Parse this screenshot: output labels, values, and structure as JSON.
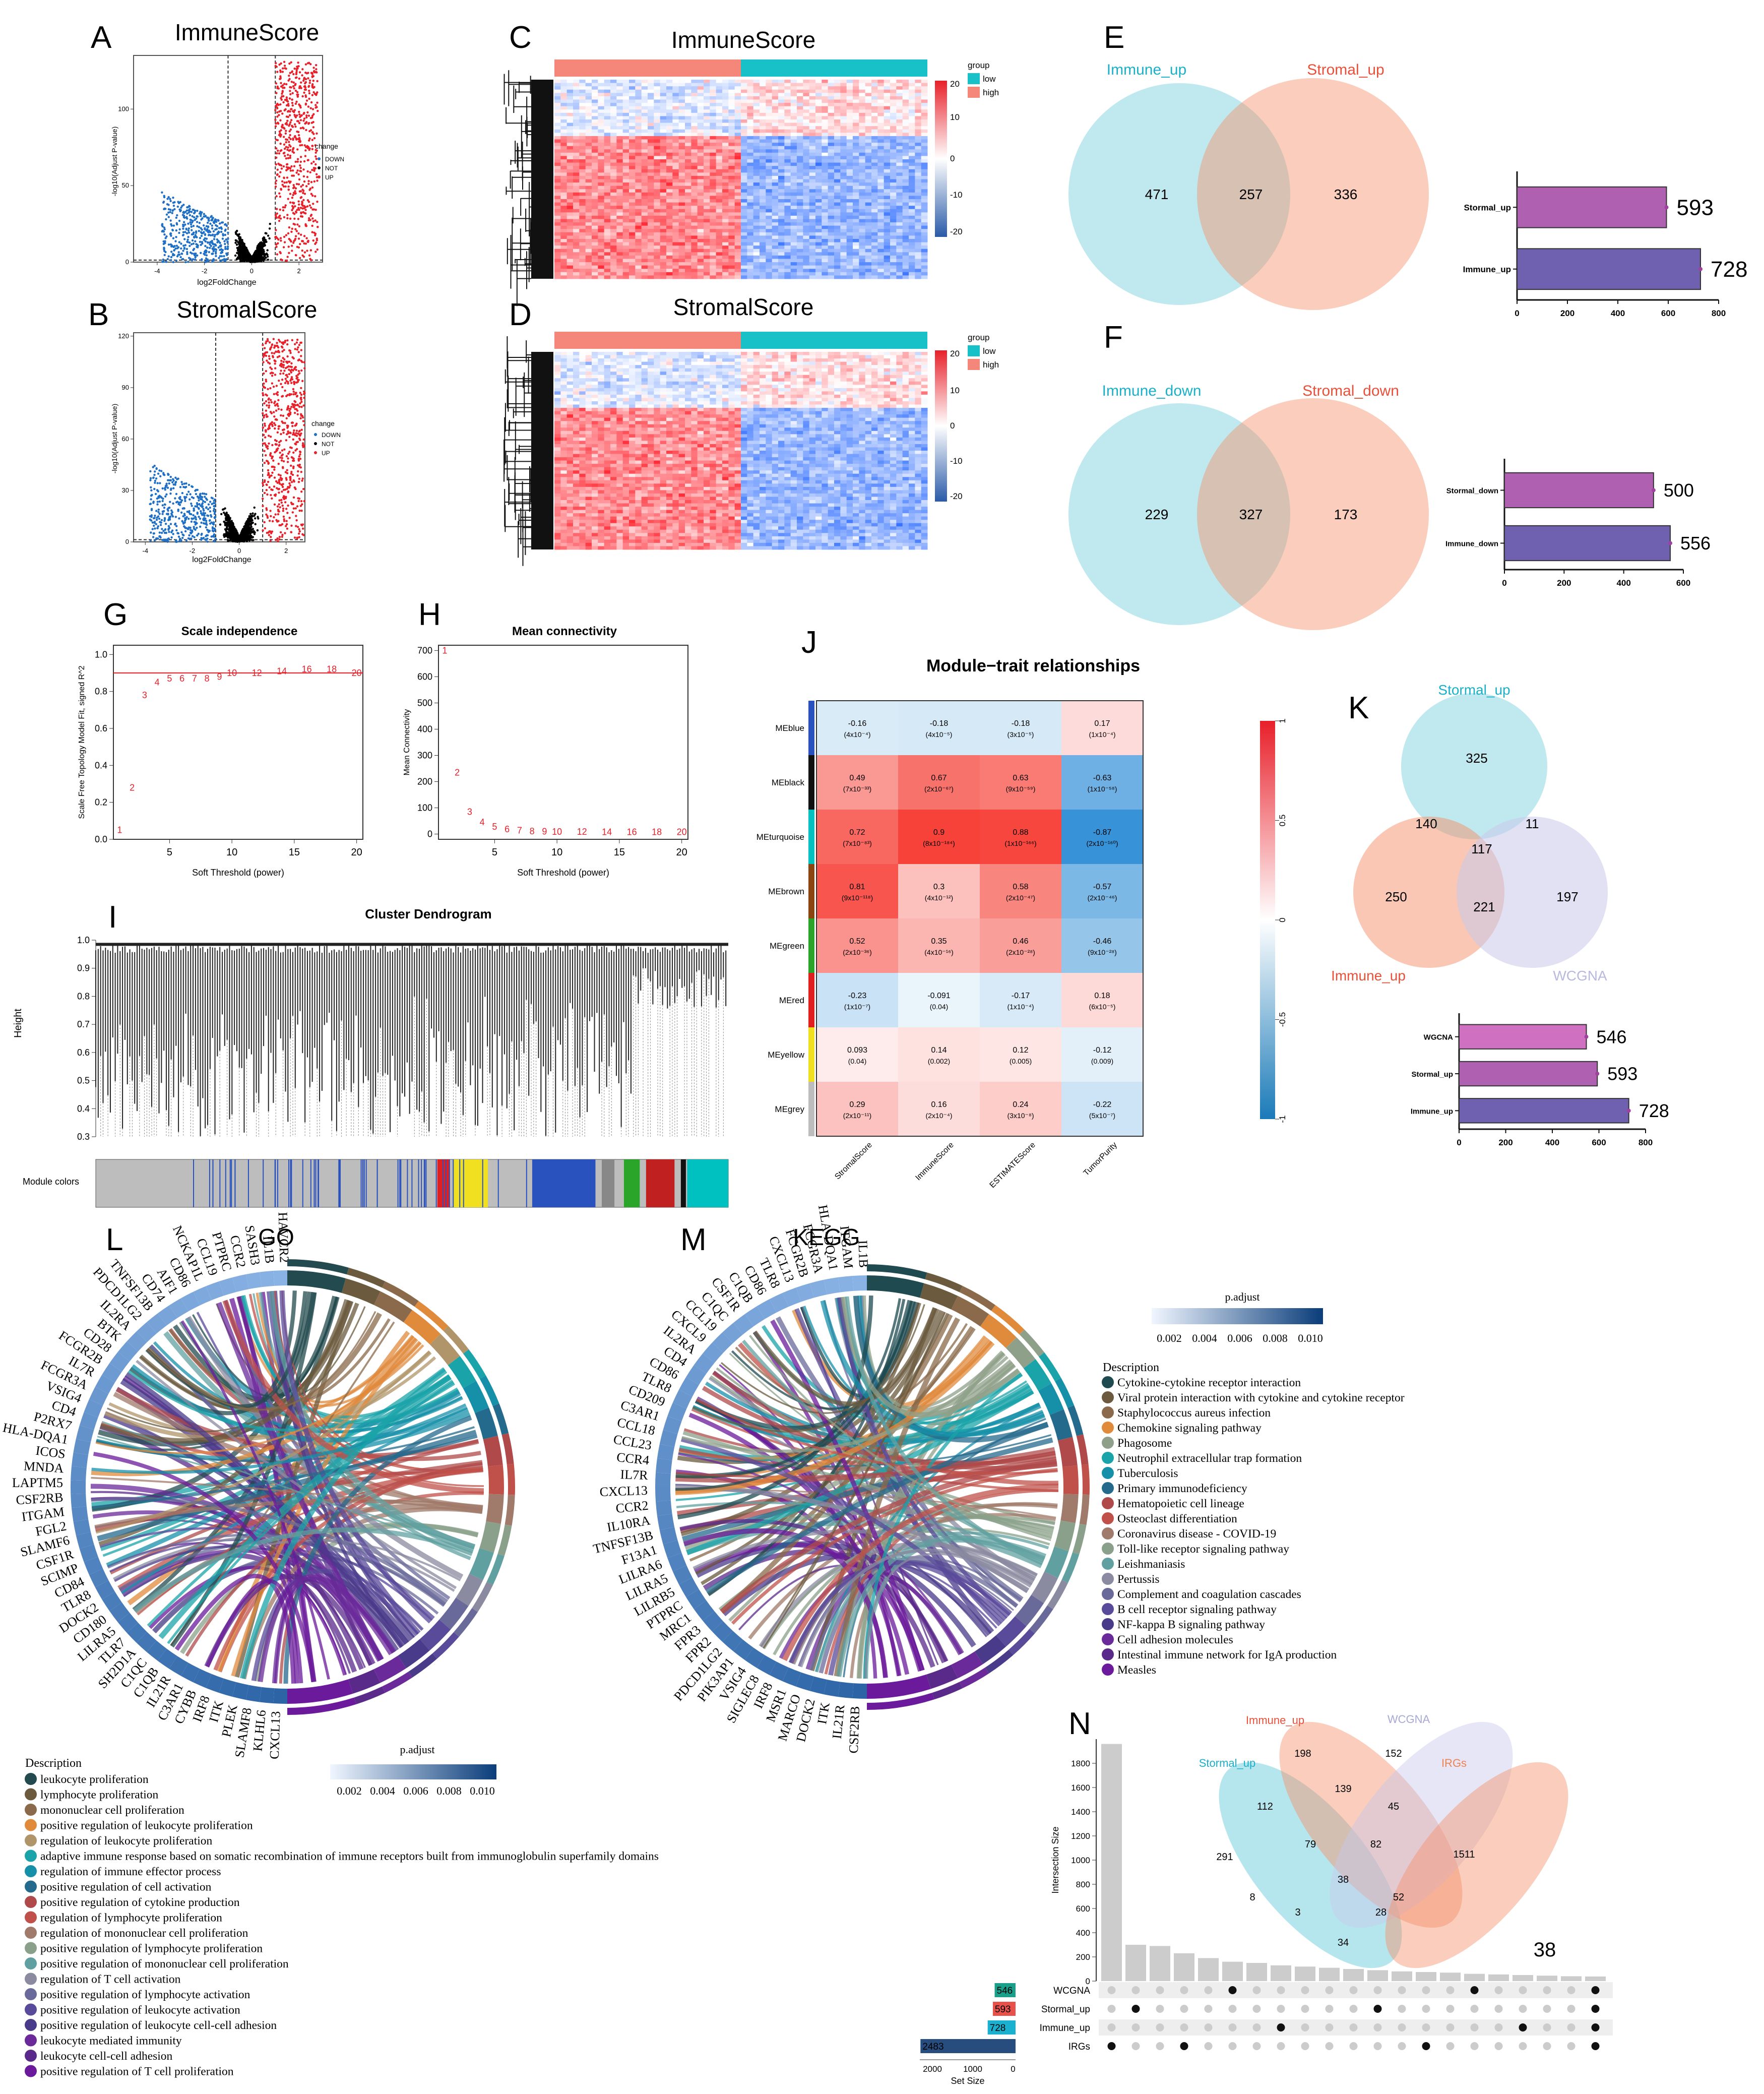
{
  "panel_labels": [
    "A",
    "B",
    "C",
    "D",
    "E",
    "F",
    "G",
    "H",
    "I",
    "J",
    "K",
    "L",
    "M",
    "N"
  ],
  "volcano": {
    "a_title": "ImmuneScore",
    "b_title": "StromalScore",
    "xlabel": "log2FoldChange",
    "ylabel": "-log10(Adjust P-value)",
    "legend_title": "change",
    "legend_items": [
      "DOWN",
      "NOT",
      "UP"
    ],
    "colors": {
      "down": "#1f6fc5",
      "not": "#000000",
      "up": "#e8202a"
    }
  },
  "heatmap": {
    "c_title": "ImmuneScore",
    "d_title": "StromalScore",
    "legend_title": "group",
    "legend_items": [
      "low",
      "high"
    ],
    "scale_ticks": [
      "20",
      "10",
      "0",
      "-10",
      "-20"
    ]
  },
  "venn_e": {
    "left_label": "Immune_up",
    "right_label": "Stromal_up",
    "left_only": "471",
    "overlap": "257",
    "right_only": "336",
    "bar_labels": [
      "Stormal_up",
      "Immune_up"
    ],
    "bar_values": [
      "593",
      "728"
    ],
    "bar_ticks": [
      "0",
      "200",
      "400",
      "600",
      "800"
    ]
  },
  "venn_f": {
    "left_label": "Immune_down",
    "right_label": "Stromal_down",
    "left_only": "229",
    "overlap": "327",
    "right_only": "173",
    "bar_labels": [
      "Stormal_down",
      "Immune_down"
    ],
    "bar_values": [
      "500",
      "556"
    ],
    "bar_ticks": [
      "0",
      "200",
      "400",
      "600"
    ]
  },
  "scale_free": {
    "title": "Scale independence",
    "xlabel": "Soft Threshold (power)",
    "ylabel": "Scale Free Topology Model Fit, signed R^2",
    "points": [
      [
        1,
        0.05
      ],
      [
        2,
        0.28
      ],
      [
        3,
        0.78
      ],
      [
        4,
        0.85
      ],
      [
        5,
        0.87
      ],
      [
        6,
        0.87
      ],
      [
        7,
        0.87
      ],
      [
        8,
        0.87
      ],
      [
        9,
        0.88
      ],
      [
        10,
        0.9
      ],
      [
        12,
        0.9
      ],
      [
        14,
        0.91
      ],
      [
        16,
        0.92
      ],
      [
        18,
        0.92
      ],
      [
        20,
        0.9
      ]
    ],
    "x_ticks": [
      "5",
      "10",
      "15",
      "20"
    ],
    "y_ticks": [
      "0.0",
      "0.2",
      "0.4",
      "0.6",
      "0.8",
      "1.0"
    ],
    "cutoff": 0.9
  },
  "mean_conn": {
    "title": "Mean connectivity",
    "xlabel": "Soft Threshold (power)",
    "ylabel": "Mean Connectivity",
    "points": [
      [
        1,
        700
      ],
      [
        2,
        235
      ],
      [
        3,
        85
      ],
      [
        4,
        45
      ],
      [
        5,
        28
      ],
      [
        6,
        18
      ],
      [
        7,
        14
      ],
      [
        8,
        11
      ],
      [
        9,
        10
      ],
      [
        10,
        9
      ],
      [
        12,
        9
      ],
      [
        14,
        8
      ],
      [
        16,
        8
      ],
      [
        18,
        8
      ],
      [
        20,
        8
      ]
    ],
    "x_ticks": [
      "5",
      "10",
      "15",
      "20"
    ],
    "y_ticks": [
      "0",
      "100",
      "200",
      "300",
      "400",
      "500",
      "600",
      "700"
    ]
  },
  "dendrogram": {
    "title": "Cluster Dendrogram",
    "ylabel": "Height",
    "y_ticks": [
      "1.0",
      "0.9",
      "0.8",
      "0.7",
      "0.6",
      "0.5",
      "0.4",
      "0.3"
    ],
    "module_label": "Module colors"
  },
  "module_trait": {
    "title": "Module−trait relationships",
    "rows": [
      "MEblue",
      "MEblack",
      "MEturquoise",
      "MEbrown",
      "MEgreen",
      "MEred",
      "MEyellow",
      "MEgrey"
    ],
    "row_colors": [
      "#2a52be",
      "#111111",
      "#00c0c0",
      "#8b4513",
      "#2aa52a",
      "#e02020",
      "#f0e020",
      "#bdbdbd"
    ],
    "cols": [
      "StromalScore",
      "ImmuneScore",
      "ESTIMATEScore",
      "TumorPurity"
    ],
    "values": [
      [
        -0.16,
        -0.18,
        -0.18,
        0.17
      ],
      [
        0.49,
        0.67,
        0.63,
        -0.63
      ],
      [
        0.72,
        0.9,
        0.88,
        -0.87
      ],
      [
        0.81,
        0.3,
        0.58,
        -0.57
      ],
      [
        0.52,
        0.35,
        0.46,
        -0.46
      ],
      [
        -0.23,
        -0.091,
        -0.17,
        0.18
      ],
      [
        0.093,
        0.14,
        0.12,
        -0.12
      ],
      [
        0.29,
        0.16,
        0.24,
        -0.22
      ]
    ],
    "value_text": [
      [
        "-0.16",
        "-0.18",
        "-0.18",
        "0.17"
      ],
      [
        "0.49",
        "0.67",
        "0.63",
        "-0.63"
      ],
      [
        "0.72",
        "0.9",
        "0.88",
        "-0.87"
      ],
      [
        "0.81",
        "0.3",
        "0.58",
        "-0.57"
      ],
      [
        "0.52",
        "0.35",
        "0.46",
        "-0.46"
      ],
      [
        "-0.23",
        "-0.091",
        "-0.17",
        "0.18"
      ],
      [
        "0.093",
        "0.14",
        "0.12",
        "-0.12"
      ],
      [
        "0.29",
        "0.16",
        "0.24",
        "-0.22"
      ]
    ],
    "pvalue_text": [
      [
        "(4x10⁻⁴)",
        "(4x10⁻⁵)",
        "(3x10⁻⁵)",
        "(1x10⁻⁴)"
      ],
      [
        "(7x10⁻³³)",
        "(2x10⁻⁶⁷)",
        "(9x10⁻⁵⁹)",
        "(1x10⁻⁵⁸)"
      ],
      [
        "(7x10⁻⁸³)",
        "(8x10⁻¹⁸⁴)",
        "(1x10⁻¹⁶⁶)",
        "(2x10⁻¹⁶⁰)"
      ],
      [
        "(9x10⁻¹¹⁸)",
        "(4x10⁻¹²)",
        "(2x10⁻⁴⁷)",
        "(2x10⁻⁴⁶)"
      ],
      [
        "(2x10⁻³⁶)",
        "(4x10⁻¹⁶)",
        "(2x10⁻²⁸)",
        "(9x10⁻²⁸)"
      ],
      [
        "(1x10⁻⁷)",
        "(0.04)",
        "(1x10⁻⁴)",
        "(6x10⁻⁵)"
      ],
      [
        "(0.04)",
        "(0.002)",
        "(0.005)",
        "(0.009)"
      ],
      [
        "(2x10⁻¹¹)",
        "(2x10⁻⁴)",
        "(3x10⁻⁸)",
        "(5x10⁻⁷)"
      ]
    ],
    "scale_ticks": [
      "1",
      "0.5",
      "0",
      "-0.5",
      "-1"
    ]
  },
  "venn_k": {
    "top_label": "Stormal_up",
    "left_label": "Immune_up",
    "right_label": "WCGNA",
    "values": {
      "top_only": "325",
      "top_left": "140",
      "top_right": "11",
      "center": "117",
      "left_only": "250",
      "left_right": "221",
      "right_only": "197"
    },
    "bar_labels": [
      "WGCNA",
      "Stormal_up",
      "Immune_up"
    ],
    "bar_values": [
      "546",
      "593",
      "728"
    ],
    "bar_ticks": [
      "0",
      "200",
      "400",
      "600",
      "800"
    ]
  },
  "chord_go": {
    "title": "GO",
    "genes": [
      "HAVCR2",
      "IL1B",
      "SASH3",
      "CCR2",
      "PTPRC",
      "CCL19",
      "NCKAP1L",
      "CD86",
      "AIF1",
      "CD74",
      "TNFSF13B",
      "PDCD1LG2",
      "IL2RA",
      "BTK",
      "CD28",
      "FCGR2B",
      "IL7R",
      "FCGR3A",
      "VSIG4",
      "CD4",
      "P2RX7",
      "HLA-DQA1",
      "ICOS",
      "MNDA",
      "LAPTM5",
      "CSF2RB",
      "ITGAM",
      "FGL2",
      "SLAMF6",
      "CSF1R",
      "SCIMP",
      "CD84",
      "TLR8",
      "DOCK2",
      "CD180",
      "LILRA5",
      "TLR7",
      "SH2D1A",
      "C1QC",
      "C1QB",
      "IL21R",
      "C3AR1",
      "CYBB",
      "IRF8",
      "ITK",
      "PLEK",
      "SLAMF8",
      "KLHL6",
      "CXCL13"
    ],
    "legend_title": "Description",
    "descriptions": [
      "leukocyte proliferation",
      "lymphocyte proliferation",
      "mononuclear cell proliferation",
      "positive regulation of leukocyte proliferation",
      "regulation of leukocyte proliferation",
      "adaptive immune response based on somatic recombination of immune receptors built from immunoglobulin superfamily domains",
      "regulation of immune effector process",
      "positive regulation of cell activation",
      "positive regulation of cytokine production",
      "regulation of lymphocyte proliferation",
      "regulation of mononuclear cell proliferation",
      "positive regulation of lymphocyte proliferation",
      "positive regulation of mononuclear cell proliferation",
      "regulation of T cell activation",
      "positive regulation of lymphocyte activation",
      "positive regulation of leukocyte activation",
      "positive regulation of leukocyte cell-cell adhesion",
      "leukocyte mediated immunity",
      "leukocyte cell-cell adhesion",
      "positive regulation of T cell proliferation"
    ],
    "colors": [
      "#234a4e",
      "#6b5a3e",
      "#8a6a4a",
      "#e08a3c",
      "#b0956a",
      "#1aa3a8",
      "#1690a8",
      "#246a8c",
      "#b04a4a",
      "#c0504a",
      "#a07a6a",
      "#8aa08a",
      "#60a0a0",
      "#8a8aa0",
      "#6a6a9a",
      "#5a4a9a",
      "#4a3a8a",
      "#6a2a9a",
      "#5a2a8a",
      "#6a1a9a"
    ],
    "scale_title": "p.adjust",
    "scale_ticks": [
      "0.002",
      "0.004",
      "0.006",
      "0.008",
      "0.010"
    ]
  },
  "chord_kegg": {
    "title": "KEGG",
    "genes": [
      "IL1B",
      "ITGAM",
      "HLA-DQA1",
      "FCGR3A",
      "FCGR2B",
      "CXCL13",
      "TLR8",
      "CD86",
      "C1QB",
      "CSF1R",
      "C1QC",
      "CCL19",
      "CXCL9",
      "IL2RA",
      "CD4",
      "CD86",
      "TLR8",
      "CD209",
      "C3AR1",
      "CCL18",
      "CCL23",
      "CCR4",
      "IL7R",
      "CXCL13",
      "CCR2",
      "IL10RA",
      "TNFSF13B",
      "F13A1",
      "LILRA6",
      "LILRA5",
      "LILRB5",
      "PTPRC",
      "MRC1",
      "FPR3",
      "FPR2",
      "PDCD1LG2",
      "PIK3AP1",
      "VSIG4",
      "SIGLEC8",
      "IRF8",
      "MSR1",
      "MARCO",
      "DOCK2",
      "ITK",
      "IL21R",
      "CSF2RB"
    ],
    "legend_title": "Description",
    "descriptions": [
      "Cytokine-cytokine receptor interaction",
      "Viral protein interaction with cytokine and cytokine receptor",
      "Staphylococcus aureus infection",
      "Chemokine signaling pathway",
      "Phagosome",
      "Neutrophil extracellular trap formation",
      "Tuberculosis",
      "Primary immunodeficiency",
      "Hematopoietic cell lineage",
      "Osteoclast differentiation",
      "Coronavirus disease - COVID-19",
      "Toll-like receptor signaling pathway",
      "Leishmaniasis",
      "Pertussis",
      "Complement and coagulation cascades",
      "B cell receptor signaling pathway",
      "NF-kappa B signaling pathway",
      "Cell adhesion molecules",
      "Intestinal immune network for IgA production",
      "Measles"
    ],
    "colors": [
      "#1e4a50",
      "#6b5a3e",
      "#8a6a4a",
      "#e08a3c",
      "#8fa08a",
      "#1aa3a8",
      "#1690a8",
      "#246a8c",
      "#b04a4a",
      "#c0504a",
      "#a07a6a",
      "#8aa08a",
      "#60a0a0",
      "#8a8aa0",
      "#6a6a9a",
      "#5a4a9a",
      "#4a3a8a",
      "#6a2a9a",
      "#5a2a8a",
      "#6a1a9a"
    ],
    "scale_title": "p.adjust",
    "scale_ticks": [
      "0.002",
      "0.004",
      "0.006",
      "0.008",
      "0.010"
    ]
  },
  "upset": {
    "ylabel": "Intersection Size",
    "y_ticks": [
      "0",
      "200",
      "400",
      "600",
      "800",
      "1000",
      "1200",
      "1400",
      "1600",
      "1800"
    ],
    "intersections": [
      1960,
      300,
      290,
      230,
      190,
      160,
      150,
      130,
      120,
      110,
      100,
      90,
      80,
      75,
      70,
      60,
      55,
      50,
      45,
      40,
      38
    ],
    "highlight": "38",
    "sets": [
      "WCGNA",
      "Stormal_up",
      "Immune_up",
      "IRGs"
    ],
    "set_sizes": [
      546,
      593,
      728,
      2483
    ],
    "set_size_text": [
      "546",
      "593",
      "728",
      "2483"
    ],
    "set_colors": [
      "#1aa08a",
      "#e8504a",
      "#1ab0d0",
      "#264d7e"
    ],
    "set_size_label": "Set Size",
    "set_size_ticks": [
      "2000",
      "1000",
      "0"
    ],
    "venn4": {
      "labels": [
        "Stormal_up",
        "Immune_up",
        "WCGNA",
        "IRGs"
      ],
      "values": [
        "291",
        "198",
        "152",
        "1511",
        "112",
        "139",
        "45",
        "79",
        "82",
        "38",
        "8",
        "52",
        "3",
        "28",
        "34"
      ]
    }
  }
}
